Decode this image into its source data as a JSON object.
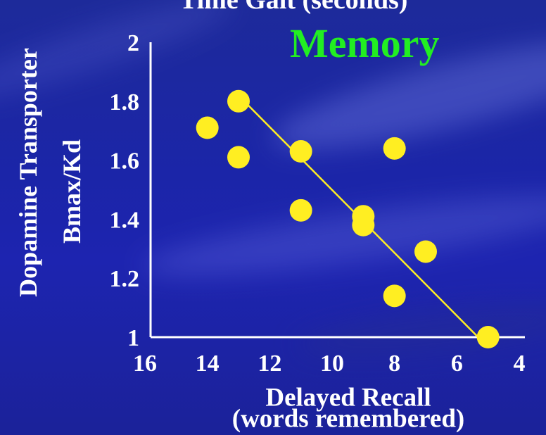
{
  "chart_data": {
    "type": "scatter",
    "title": "Time Gait (seconds)",
    "subtitle": "Memory",
    "ylabel_line1": "Dopamine Transporter",
    "ylabel_line2": "Bmax/Kd",
    "xlabel_line1": "Delayed Recall",
    "xlabel_line2": "(words remembered)",
    "xlim": [
      16,
      4
    ],
    "ylim": [
      1,
      2
    ],
    "x_ticks": [
      16,
      14,
      12,
      10,
      8,
      6,
      4
    ],
    "y_ticks": [
      1,
      1.2,
      1.4,
      1.6,
      1.8,
      2
    ],
    "y_tick_labels": [
      "1",
      "1.2",
      "1.4",
      "1.6",
      "1.8",
      "2"
    ],
    "x_reversed": true,
    "grid": false,
    "points": [
      {
        "x": 14,
        "y": 1.71
      },
      {
        "x": 13,
        "y": 1.8
      },
      {
        "x": 13,
        "y": 1.61
      },
      {
        "x": 11,
        "y": 1.63
      },
      {
        "x": 11,
        "y": 1.43
      },
      {
        "x": 9,
        "y": 1.41
      },
      {
        "x": 9,
        "y": 1.38
      },
      {
        "x": 8,
        "y": 1.64
      },
      {
        "x": 8,
        "y": 1.14
      },
      {
        "x": 7,
        "y": 1.29
      },
      {
        "x": 5,
        "y": 1.0
      }
    ],
    "trendline": {
      "x": [
        13,
        5.5
      ],
      "y": [
        1.8,
        1.0
      ]
    },
    "colors": {
      "point": "#ffee22",
      "trendline": "#ffee22",
      "axis": "#ffffff",
      "subtitle": "#22ee22",
      "text": "#ffffff"
    }
  }
}
